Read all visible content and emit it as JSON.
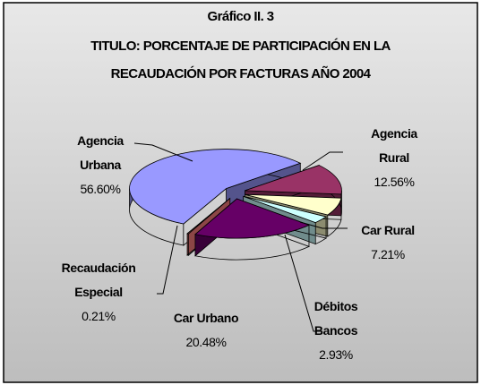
{
  "chart_data": {
    "type": "pie",
    "title": "Gráfico II. 3",
    "subtitle": [
      "TITULO: PORCENTAJE DE PARTICIPACIÓN EN LA",
      "RECAUDACIÓN POR FACTURAS AÑO 2004"
    ],
    "categories": [
      "Agencia Rural",
      "Car Rural",
      "Débitos Bancos",
      "Car Urbano",
      "Recaudación Especial",
      "Agencia Urbana"
    ],
    "values": [
      12.56,
      7.21,
      2.93,
      20.48,
      0.21,
      56.6
    ],
    "value_labels": [
      "12.56%",
      "7.21%",
      "2.93%",
      "20.48%",
      "0.21%",
      "56.60%"
    ],
    "colors": [
      "#993366",
      "#ffffcc",
      "#ccffff",
      "#660066",
      "#ff8080",
      "#9999ff"
    ]
  }
}
